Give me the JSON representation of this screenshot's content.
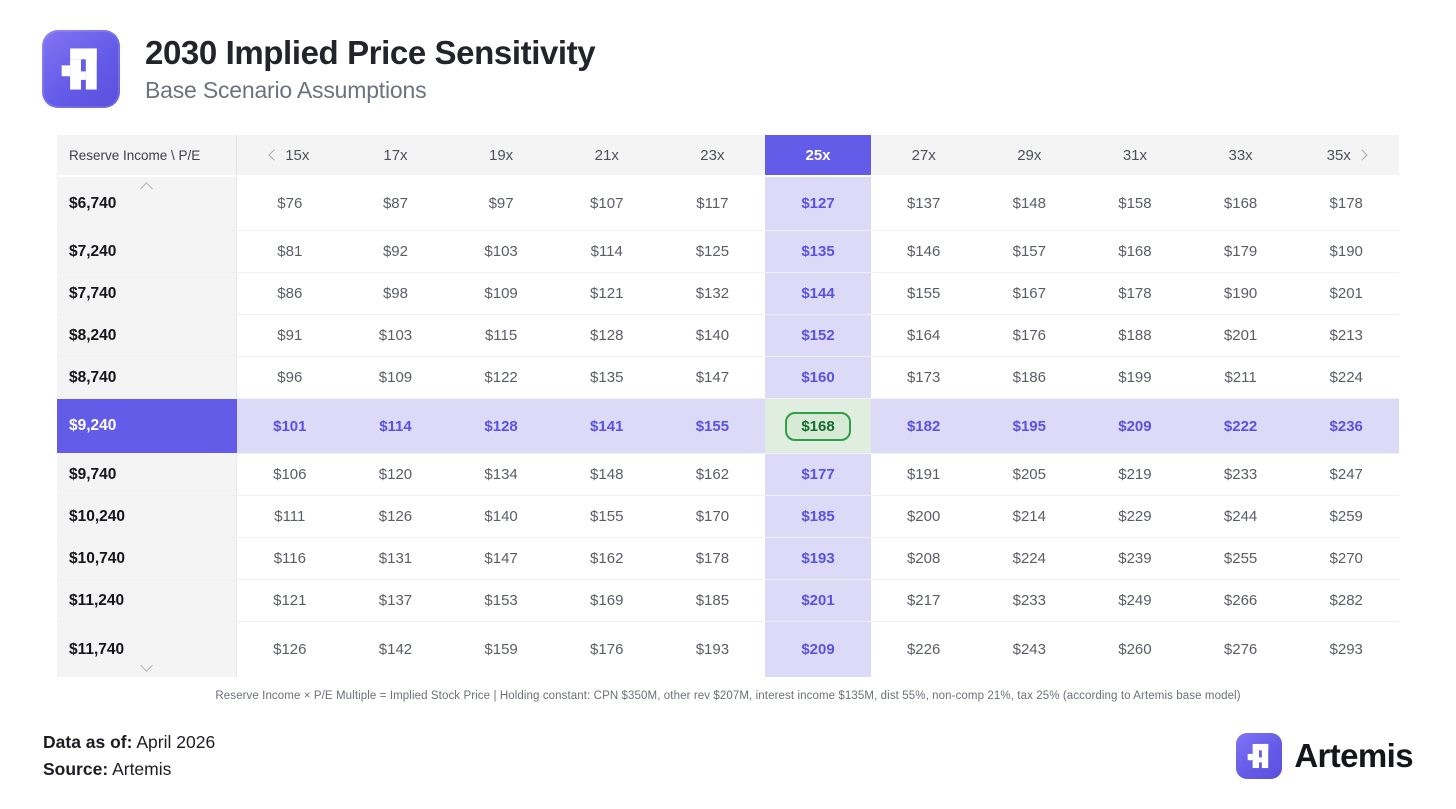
{
  "header": {
    "title": "2030 Implied Price Sensitivity",
    "subtitle": "Base Scenario Assumptions"
  },
  "chart_data": {
    "type": "table",
    "title": "2030 Implied Price Sensitivity",
    "subtitle": "Base Scenario Assumptions",
    "corner_label": "Reserve Income \\ P/E",
    "x_header": "P/E Multiple",
    "y_header": "Reserve Income",
    "columns": [
      "15x",
      "17x",
      "19x",
      "21x",
      "23x",
      "25x",
      "27x",
      "29x",
      "31x",
      "33x",
      "35x"
    ],
    "rows": [
      {
        "label": "$6,740",
        "values": [
          "$76",
          "$87",
          "$97",
          "$107",
          "$117",
          "$127",
          "$137",
          "$148",
          "$158",
          "$168",
          "$178"
        ]
      },
      {
        "label": "$7,240",
        "values": [
          "$81",
          "$92",
          "$103",
          "$114",
          "$125",
          "$135",
          "$146",
          "$157",
          "$168",
          "$179",
          "$190"
        ]
      },
      {
        "label": "$7,740",
        "values": [
          "$86",
          "$98",
          "$109",
          "$121",
          "$132",
          "$144",
          "$155",
          "$167",
          "$178",
          "$190",
          "$201"
        ]
      },
      {
        "label": "$8,240",
        "values": [
          "$91",
          "$103",
          "$115",
          "$128",
          "$140",
          "$152",
          "$164",
          "$176",
          "$188",
          "$201",
          "$213"
        ]
      },
      {
        "label": "$8,740",
        "values": [
          "$96",
          "$109",
          "$122",
          "$135",
          "$147",
          "$160",
          "$173",
          "$186",
          "$199",
          "$211",
          "$224"
        ]
      },
      {
        "label": "$9,240",
        "values": [
          "$101",
          "$114",
          "$128",
          "$141",
          "$155",
          "$168",
          "$182",
          "$195",
          "$209",
          "$222",
          "$236"
        ]
      },
      {
        "label": "$9,740",
        "values": [
          "$106",
          "$120",
          "$134",
          "$148",
          "$162",
          "$177",
          "$191",
          "$205",
          "$219",
          "$233",
          "$247"
        ]
      },
      {
        "label": "$10,240",
        "values": [
          "$111",
          "$126",
          "$140",
          "$155",
          "$170",
          "$185",
          "$200",
          "$214",
          "$229",
          "$244",
          "$259"
        ]
      },
      {
        "label": "$10,740",
        "values": [
          "$116",
          "$131",
          "$147",
          "$162",
          "$178",
          "$193",
          "$208",
          "$224",
          "$239",
          "$255",
          "$270"
        ]
      },
      {
        "label": "$11,240",
        "values": [
          "$121",
          "$137",
          "$153",
          "$169",
          "$185",
          "$201",
          "$217",
          "$233",
          "$249",
          "$266",
          "$282"
        ]
      },
      {
        "label": "$11,740",
        "values": [
          "$126",
          "$142",
          "$159",
          "$176",
          "$193",
          "$209",
          "$226",
          "$243",
          "$260",
          "$276",
          "$293"
        ]
      }
    ],
    "highlight": {
      "column": "25x",
      "row": "$9,240",
      "cell_value": "$168"
    },
    "note": "Reserve Income × P/E Multiple = Implied Stock Price | Holding constant: CPN $350M, other rev $207M, interest income $135M, dist 55%, non-comp 21%, tax 25% (according to Artemis base model)"
  },
  "footnote": "Reserve Income × P/E Multiple = Implied Stock Price | Holding constant: CPN $350M, other rev $207M, interest income $135M, dist 55%, non-comp 21%, tax 25% (according to Artemis base model)",
  "footer": {
    "data_as_of_label": "Data as of:",
    "data_as_of_value": "April 2026",
    "source_label": "Source:",
    "source_value": "Artemis",
    "brand_name": "Artemis"
  },
  "icons": {
    "chevron_left_icon": "css-chevron-shape",
    "chevron_right_icon": "css-chevron-shape",
    "chevron_up_icon": "css-chevron-shape",
    "chevron_down_icon": "css-chevron-shape",
    "artemis_logo_icon": "pixel-A-mark"
  },
  "colors": {
    "accent_purple": "#635CE8",
    "highlight_bg": "#DDDAF8",
    "highlight_text": "#5A52E0",
    "green_bg": "#DFEEDE",
    "green_pill_bg": "#D6EAD6",
    "green_border": "#2F9E46",
    "green_text": "#156C2E"
  }
}
